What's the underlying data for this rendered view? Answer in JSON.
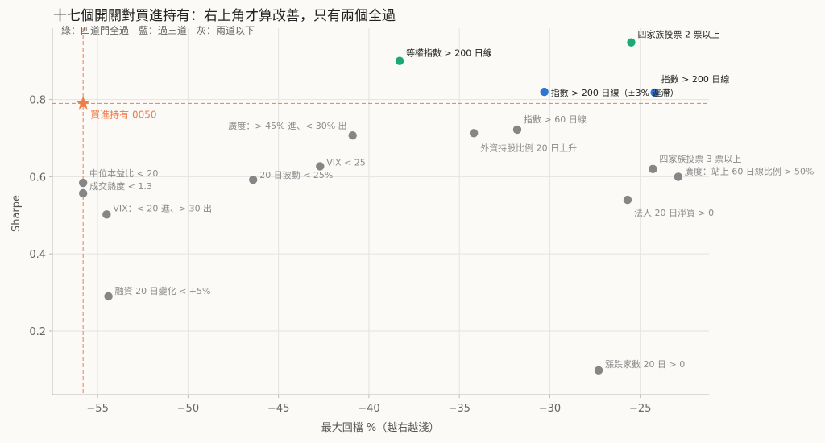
{
  "chart_data": {
    "type": "scatter",
    "title": "十七個開關對買進持有：右上角才算改善，只有兩個全過",
    "subtitle": "綠：四道門全過　藍：過三道　灰：兩道以下",
    "xlabel": "最大回檔 %（越右越淺）",
    "ylabel": "Sharpe",
    "xlim": [
      -57.5,
      -21.2
    ],
    "ylim": [
      0.035,
      0.985
    ],
    "xticks": [
      -55,
      -50,
      -45,
      -40,
      -35,
      -30,
      -25
    ],
    "yticks": [
      0.2,
      0.4,
      0.6,
      0.8
    ],
    "grid": true,
    "colors": {
      "green": "#1aab74",
      "blue": "#2f74d0",
      "gray": "#868686",
      "baseline": "#ef7d4b"
    },
    "baseline": {
      "label": "買進持有 0050",
      "x": -55.8,
      "y": 0.79
    },
    "points": [
      {
        "label": "四家族投票 2 票以上",
        "x": -25.5,
        "y": 0.948,
        "group": "green"
      },
      {
        "label": "等權指數 > 200 日線",
        "x": -38.3,
        "y": 0.9,
        "group": "green"
      },
      {
        "label": "指數 > 200 日線",
        "x": -24.2,
        "y": 0.818,
        "group": "blue"
      },
      {
        "label": "指數 > 200 日線（±3% 遲滯）",
        "x": -30.3,
        "y": 0.82,
        "group": "blue"
      },
      {
        "label": "廣度：> 45% 進、< 30% 出",
        "x": -40.9,
        "y": 0.707,
        "group": "gray"
      },
      {
        "label": "指數 > 60 日線",
        "x": -31.8,
        "y": 0.722,
        "group": "gray"
      },
      {
        "label": "外資持股比例 20 日上升",
        "x": -34.2,
        "y": 0.713,
        "group": "gray"
      },
      {
        "label": "VIX < 25",
        "x": -42.7,
        "y": 0.627,
        "group": "gray"
      },
      {
        "label": "20 日波動 < 25%",
        "x": -46.4,
        "y": 0.592,
        "group": "gray"
      },
      {
        "label": "中位本益比 < 20",
        "x": -55.8,
        "y": 0.584,
        "group": "gray"
      },
      {
        "label": "成交熱度 < 1.3",
        "x": -55.8,
        "y": 0.557,
        "group": "gray"
      },
      {
        "label": "VIX：< 20 進、> 30 出",
        "x": -54.5,
        "y": 0.502,
        "group": "gray"
      },
      {
        "label": "四家族投票 3 票以上",
        "x": -24.3,
        "y": 0.62,
        "group": "gray"
      },
      {
        "label": "廣度：站上 60 日線比例 > 50%",
        "x": -22.9,
        "y": 0.6,
        "group": "gray"
      },
      {
        "label": "法人 20 日淨買 > 0",
        "x": -25.7,
        "y": 0.54,
        "group": "gray"
      },
      {
        "label": "融資 20 日變化 < +5%",
        "x": -54.4,
        "y": 0.29,
        "group": "gray"
      },
      {
        "label": "漲跌家數 20 日 > 0",
        "x": -27.3,
        "y": 0.098,
        "group": "gray"
      }
    ]
  }
}
